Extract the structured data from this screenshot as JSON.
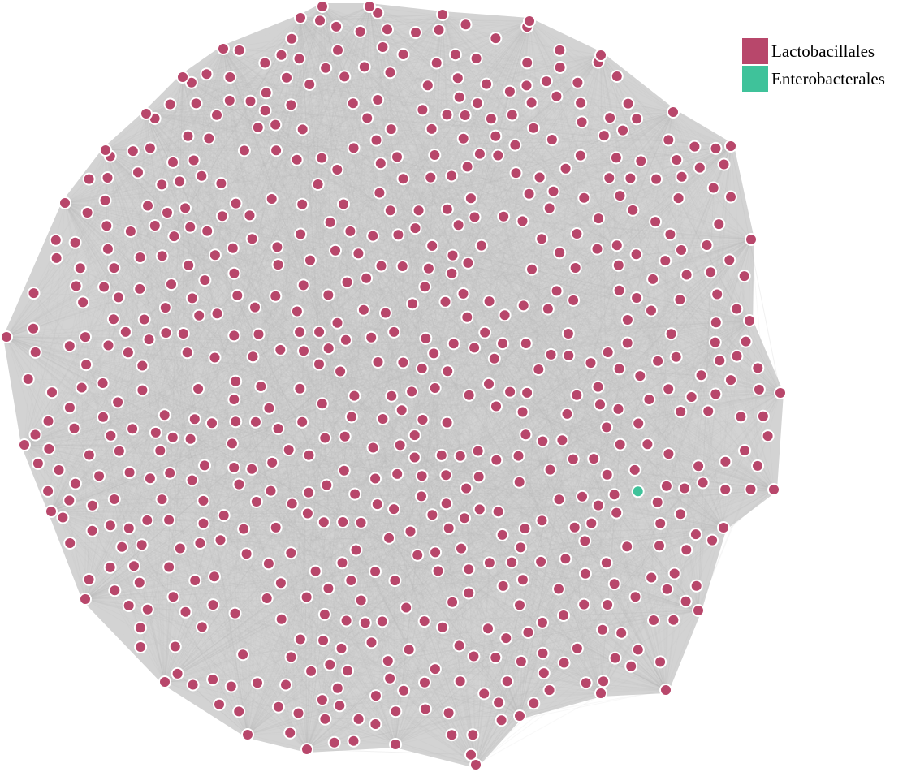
{
  "legend": {
    "items": [
      {
        "label": "Lactobacillales",
        "color": "#b8476b"
      },
      {
        "label": "Enterobacterales",
        "color": "#3fc29a"
      }
    ]
  },
  "network": {
    "background_fill": "#d3d3d3",
    "edge_color": "#bdbdbd",
    "node_outline": "#ffffff",
    "highlight_outline": "#e8c15a",
    "total_nodes": 640,
    "lactobacillales_nodes": 639,
    "enterobacterales_nodes": 1
  }
}
